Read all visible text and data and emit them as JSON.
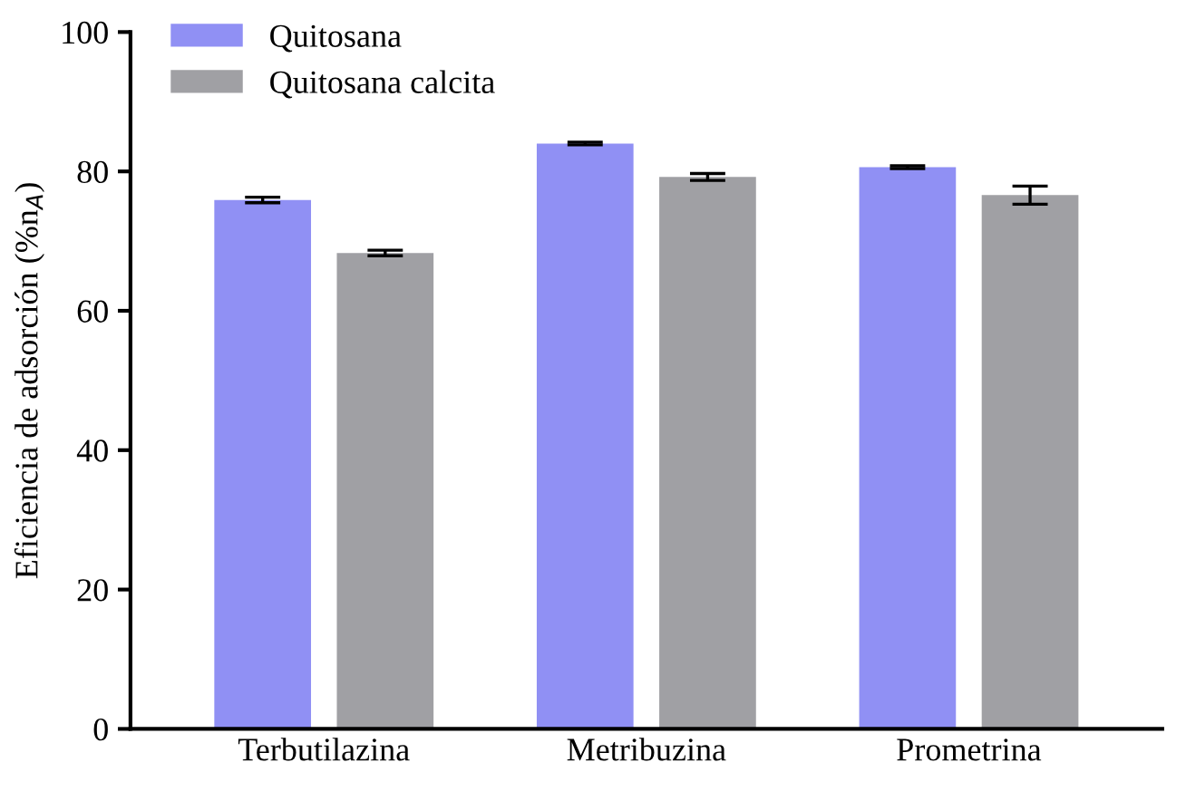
{
  "chart_data": {
    "type": "bar",
    "ylabel": "Eficiencia de adsorción (%n$_{A}$)",
    "categories": [
      "Terbutilazina",
      "Metribuzina",
      "Prometrina"
    ],
    "series": [
      {
        "name": "Quitosana",
        "color": "#9090f4",
        "values": [
          75.9,
          84.0,
          80.6
        ],
        "errors": [
          0.4,
          0.2,
          0.2
        ]
      },
      {
        "name": "Quitosana calcita",
        "color": "#a0a0a4",
        "values": [
          68.3,
          79.2,
          76.6
        ],
        "errors": [
          0.4,
          0.5,
          1.3
        ]
      }
    ],
    "ylim": [
      0,
      100
    ],
    "yticks": [
      0,
      20,
      40,
      60,
      80,
      100
    ],
    "grid": false,
    "legend": "top left"
  }
}
